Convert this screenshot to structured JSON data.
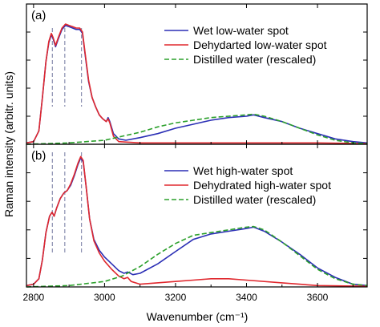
{
  "chart_data": {
    "type": "line",
    "xlabel": "Wavenumber (cm⁻¹)",
    "ylabel": "Raman intensity (arbitr. units)",
    "xlim": [
      2780,
      3740
    ],
    "x_ticks": [
      2800,
      3000,
      3200,
      3400,
      3600
    ],
    "x_tick_labels": [
      "2800",
      "3000",
      "3200",
      "3400",
      "3600"
    ],
    "y_ticks_labeled": false,
    "dashed_guides_x": [
      2853,
      2888,
      2935
    ],
    "panels": [
      {
        "label": "(a)",
        "ylim": [
          0,
          1.05
        ],
        "legend_position": "top-right",
        "series": [
          {
            "name": "Wet low-water spot",
            "color": "#2b2fb5",
            "style": "solid",
            "points": [
              [
                2780,
                0.01
              ],
              [
                2800,
                0.02
              ],
              [
                2815,
                0.1
              ],
              [
                2825,
                0.35
              ],
              [
                2835,
                0.62
              ],
              [
                2843,
                0.76
              ],
              [
                2850,
                0.82
              ],
              [
                2855,
                0.79
              ],
              [
                2862,
                0.73
              ],
              [
                2870,
                0.79
              ],
              [
                2880,
                0.86
              ],
              [
                2890,
                0.89
              ],
              [
                2900,
                0.88
              ],
              [
                2910,
                0.87
              ],
              [
                2920,
                0.86
              ],
              [
                2930,
                0.86
              ],
              [
                2938,
                0.83
              ],
              [
                2945,
                0.68
              ],
              [
                2955,
                0.47
              ],
              [
                2965,
                0.35
              ],
              [
                2975,
                0.28
              ],
              [
                2985,
                0.22
              ],
              [
                2995,
                0.19
              ],
              [
                3005,
                0.17
              ],
              [
                3010,
                0.2
              ],
              [
                3015,
                0.17
              ],
              [
                3025,
                0.08
              ],
              [
                3040,
                0.04
              ],
              [
                3060,
                0.03
              ],
              [
                3100,
                0.05
              ],
              [
                3150,
                0.08
              ],
              [
                3200,
                0.12
              ],
              [
                3250,
                0.15
              ],
              [
                3300,
                0.18
              ],
              [
                3350,
                0.2
              ],
              [
                3400,
                0.21
              ],
              [
                3420,
                0.22
              ],
              [
                3450,
                0.2
              ],
              [
                3500,
                0.17
              ],
              [
                3550,
                0.12
              ],
              [
                3600,
                0.08
              ],
              [
                3650,
                0.04
              ],
              [
                3700,
                0.02
              ],
              [
                3740,
                0.01
              ]
            ]
          },
          {
            "name": "Dehydarted low-water spot",
            "color": "#e0282e",
            "style": "solid",
            "points": [
              [
                2780,
                0.01
              ],
              [
                2800,
                0.02
              ],
              [
                2815,
                0.1
              ],
              [
                2825,
                0.35
              ],
              [
                2835,
                0.62
              ],
              [
                2843,
                0.77
              ],
              [
                2850,
                0.83
              ],
              [
                2855,
                0.8
              ],
              [
                2862,
                0.74
              ],
              [
                2870,
                0.8
              ],
              [
                2880,
                0.87
              ],
              [
                2890,
                0.9
              ],
              [
                2900,
                0.89
              ],
              [
                2910,
                0.88
              ],
              [
                2920,
                0.87
              ],
              [
                2930,
                0.87
              ],
              [
                2938,
                0.84
              ],
              [
                2945,
                0.69
              ],
              [
                2955,
                0.48
              ],
              [
                2965,
                0.35
              ],
              [
                2975,
                0.28
              ],
              [
                2985,
                0.22
              ],
              [
                2995,
                0.19
              ],
              [
                3005,
                0.17
              ],
              [
                3010,
                0.19
              ],
              [
                3015,
                0.16
              ],
              [
                3025,
                0.06
              ],
              [
                3040,
                0.02
              ],
              [
                3100,
                0.01
              ],
              [
                3200,
                0.01
              ],
              [
                3300,
                0.01
              ],
              [
                3400,
                0.01
              ],
              [
                3500,
                0.01
              ],
              [
                3600,
                0.01
              ],
              [
                3740,
                0.005
              ]
            ]
          },
          {
            "name": "Distilled water (rescaled)",
            "color": "#2ca02c",
            "style": "dashed",
            "points": [
              [
                2780,
                0.0
              ],
              [
                2900,
                0.01
              ],
              [
                3000,
                0.03
              ],
              [
                3050,
                0.06
              ],
              [
                3100,
                0.09
              ],
              [
                3150,
                0.13
              ],
              [
                3200,
                0.16
              ],
              [
                3250,
                0.18
              ],
              [
                3300,
                0.2
              ],
              [
                3350,
                0.21
              ],
              [
                3400,
                0.22
              ],
              [
                3420,
                0.225
              ],
              [
                3450,
                0.21
              ],
              [
                3500,
                0.17
              ],
              [
                3550,
                0.12
              ],
              [
                3600,
                0.07
              ],
              [
                3650,
                0.03
              ],
              [
                3700,
                0.01
              ],
              [
                3740,
                0.005
              ]
            ]
          }
        ]
      },
      {
        "label": "(b)",
        "ylim": [
          0,
          1.05
        ],
        "legend_position": "top-right",
        "series": [
          {
            "name": "Wet high-water spot",
            "color": "#2b2fb5",
            "style": "solid",
            "points": [
              [
                2780,
                0.01
              ],
              [
                2800,
                0.02
              ],
              [
                2815,
                0.06
              ],
              [
                2825,
                0.2
              ],
              [
                2835,
                0.4
              ],
              [
                2845,
                0.52
              ],
              [
                2852,
                0.55
              ],
              [
                2858,
                0.52
              ],
              [
                2865,
                0.58
              ],
              [
                2875,
                0.65
              ],
              [
                2885,
                0.69
              ],
              [
                2895,
                0.71
              ],
              [
                2905,
                0.75
              ],
              [
                2915,
                0.82
              ],
              [
                2925,
                0.9
              ],
              [
                2933,
                0.95
              ],
              [
                2940,
                0.92
              ],
              [
                2948,
                0.74
              ],
              [
                2958,
                0.5
              ],
              [
                2970,
                0.35
              ],
              [
                2985,
                0.27
              ],
              [
                3000,
                0.22
              ],
              [
                3020,
                0.17
              ],
              [
                3040,
                0.12
              ],
              [
                3055,
                0.1
              ],
              [
                3065,
                0.11
              ],
              [
                3080,
                0.09
              ],
              [
                3100,
                0.1
              ],
              [
                3150,
                0.17
              ],
              [
                3200,
                0.26
              ],
              [
                3250,
                0.35
              ],
              [
                3300,
                0.39
              ],
              [
                3350,
                0.41
              ],
              [
                3400,
                0.43
              ],
              [
                3420,
                0.44
              ],
              [
                3450,
                0.41
              ],
              [
                3500,
                0.33
              ],
              [
                3550,
                0.24
              ],
              [
                3600,
                0.14
              ],
              [
                3650,
                0.07
              ],
              [
                3700,
                0.02
              ],
              [
                3740,
                0.01
              ]
            ]
          },
          {
            "name": "Dehydrated high-water spot",
            "color": "#e0282e",
            "style": "solid",
            "points": [
              [
                2780,
                0.01
              ],
              [
                2800,
                0.02
              ],
              [
                2815,
                0.06
              ],
              [
                2825,
                0.2
              ],
              [
                2835,
                0.4
              ],
              [
                2845,
                0.52
              ],
              [
                2852,
                0.55
              ],
              [
                2858,
                0.52
              ],
              [
                2865,
                0.58
              ],
              [
                2875,
                0.65
              ],
              [
                2885,
                0.69
              ],
              [
                2895,
                0.71
              ],
              [
                2905,
                0.76
              ],
              [
                2915,
                0.83
              ],
              [
                2925,
                0.91
              ],
              [
                2933,
                0.96
              ],
              [
                2940,
                0.93
              ],
              [
                2948,
                0.74
              ],
              [
                2958,
                0.5
              ],
              [
                2970,
                0.34
              ],
              [
                2985,
                0.25
              ],
              [
                3000,
                0.19
              ],
              [
                3020,
                0.13
              ],
              [
                3040,
                0.08
              ],
              [
                3055,
                0.06
              ],
              [
                3065,
                0.07
              ],
              [
                3075,
                0.04
              ],
              [
                3100,
                0.02
              ],
              [
                3200,
                0.04
              ],
              [
                3250,
                0.05
              ],
              [
                3300,
                0.06
              ],
              [
                3350,
                0.06
              ],
              [
                3400,
                0.05
              ],
              [
                3500,
                0.03
              ],
              [
                3600,
                0.01
              ],
              [
                3740,
                0.005
              ]
            ]
          },
          {
            "name": "Distilled water (rescaled)",
            "color": "#2ca02c",
            "style": "dashed",
            "points": [
              [
                2780,
                0.0
              ],
              [
                2900,
                0.01
              ],
              [
                3000,
                0.04
              ],
              [
                3050,
                0.08
              ],
              [
                3100,
                0.15
              ],
              [
                3150,
                0.24
              ],
              [
                3200,
                0.32
              ],
              [
                3250,
                0.38
              ],
              [
                3300,
                0.4
              ],
              [
                3350,
                0.42
              ],
              [
                3400,
                0.44
              ],
              [
                3420,
                0.445
              ],
              [
                3450,
                0.42
              ],
              [
                3500,
                0.33
              ],
              [
                3550,
                0.23
              ],
              [
                3600,
                0.13
              ],
              [
                3650,
                0.06
              ],
              [
                3700,
                0.02
              ],
              [
                3740,
                0.01
              ]
            ]
          }
        ]
      }
    ]
  }
}
